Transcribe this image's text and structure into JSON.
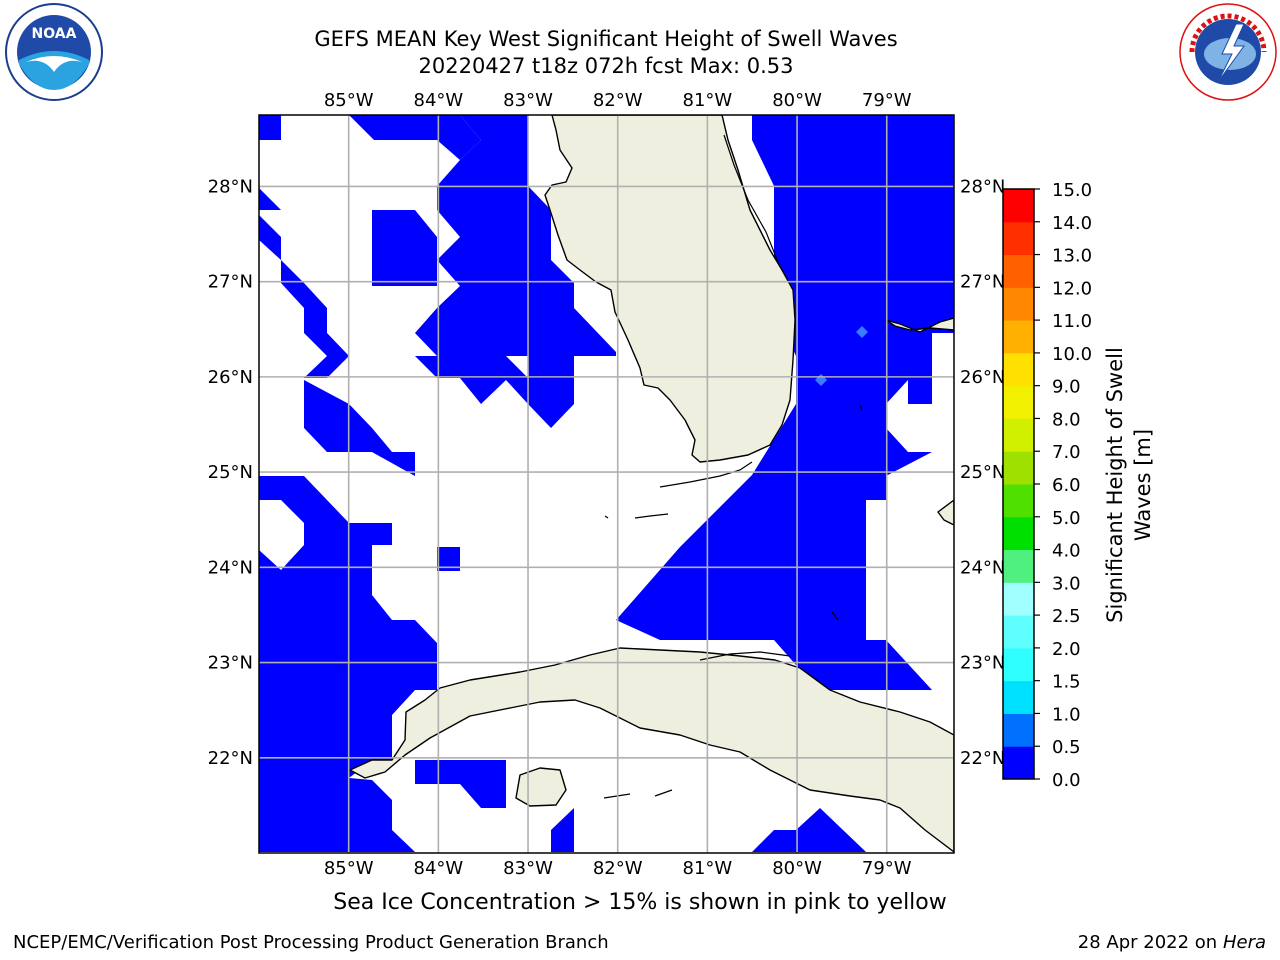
{
  "title": {
    "line1": "GEFS MEAN Key West Significant Height of Swell Waves",
    "line2": "20220427 t18z 072h fcst   Max: 0.53"
  },
  "footer": {
    "left": "NCEP/EMC/Verification Post Processing Product Generation Branch",
    "date": "28 Apr 2022 on ",
    "machine": "Hera"
  },
  "ice_note": "Sea Ice Concentration > 15% is shown in pink to yellow",
  "logos": {
    "noaa_text": "NOAA",
    "noaa_ring_top": "NATIONAL OCEANIC AND ATMOSPHERIC ADMINISTRATION",
    "noaa_ring_bottom": "U.S. DEPARTMENT OF COMMERCE",
    "nws_ring": "NATIONAL WEATHER SERVICE"
  },
  "map": {
    "lon_range": [
      -86.0,
      -78.25
    ],
    "lat_range": [
      21.0,
      28.75
    ],
    "lon_ticks": [
      -85,
      -84,
      -83,
      -82,
      -81,
      -80,
      -79
    ],
    "lon_labels": [
      "85°W",
      "84°W",
      "83°W",
      "82°W",
      "81°W",
      "80°W",
      "79°W"
    ],
    "lat_ticks": [
      22,
      23,
      24,
      25,
      26,
      27,
      28
    ],
    "lat_labels": [
      "22°N",
      "23°N",
      "24°N",
      "25°N",
      "26°N",
      "27°N",
      "28°N"
    ],
    "ocean_value_color": "#0000ff",
    "land_color": "#efefdf",
    "grid_color": "#b0b0b0"
  },
  "colorbar": {
    "label": "Significant Height of Swell Waves [m]",
    "ticks": [
      "0.0",
      "0.5",
      "1.0",
      "1.5",
      "2.0",
      "2.5",
      "3.0",
      "4.0",
      "5.0",
      "6.0",
      "7.0",
      "8.0",
      "9.0",
      "10.0",
      "11.0",
      "12.0",
      "13.0",
      "14.0",
      "15.0"
    ],
    "colors": [
      "#0000ff",
      "#0070ff",
      "#00e0ff",
      "#30ffff",
      "#60ffff",
      "#a0ffff",
      "#50f080",
      "#00e000",
      "#50e000",
      "#a0e000",
      "#d0f000",
      "#f0f000",
      "#ffe000",
      "#ffb000",
      "#ff8800",
      "#ff6000",
      "#ff3000",
      "#ff0000"
    ]
  },
  "chart_data": {
    "type": "heatmap",
    "title": "GEFS MEAN Key West Significant Height of Swell Waves",
    "subtitle": "20220427 t18z 072h fcst   Max: 0.53",
    "max_value": 0.53,
    "units": "m",
    "color_scale_range": [
      0.0,
      15.0
    ],
    "value_range_shown": [
      0.0,
      0.53
    ],
    "xlabel": "",
    "ylabel": ""
  }
}
